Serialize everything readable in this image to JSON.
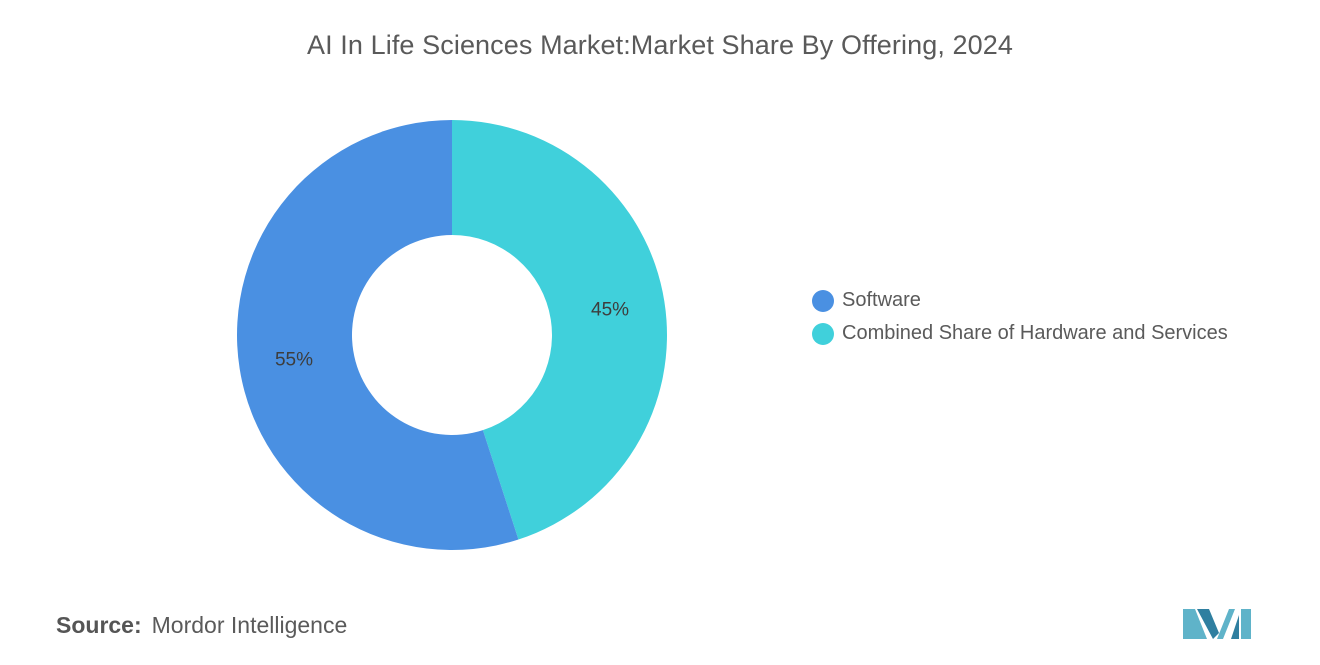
{
  "chart_data": {
    "type": "pie",
    "title": "AI In Life Sciences Market:Market Share By Offering, 2024",
    "donut": true,
    "slices": [
      {
        "name": "Software",
        "value": 55,
        "label": "55%",
        "color": "#4a90e2"
      },
      {
        "name": "Combined Share of Hardware and Services",
        "value": 45,
        "label": "45%",
        "color": "#40d0db"
      }
    ],
    "legend_position": "right"
  },
  "source": {
    "key": "Source:",
    "value": "Mordor Intelligence"
  },
  "logo": {
    "icon": "mordor-intelligence-logo-icon",
    "colors": [
      "#5fb3c9",
      "#2f7fa0"
    ]
  }
}
